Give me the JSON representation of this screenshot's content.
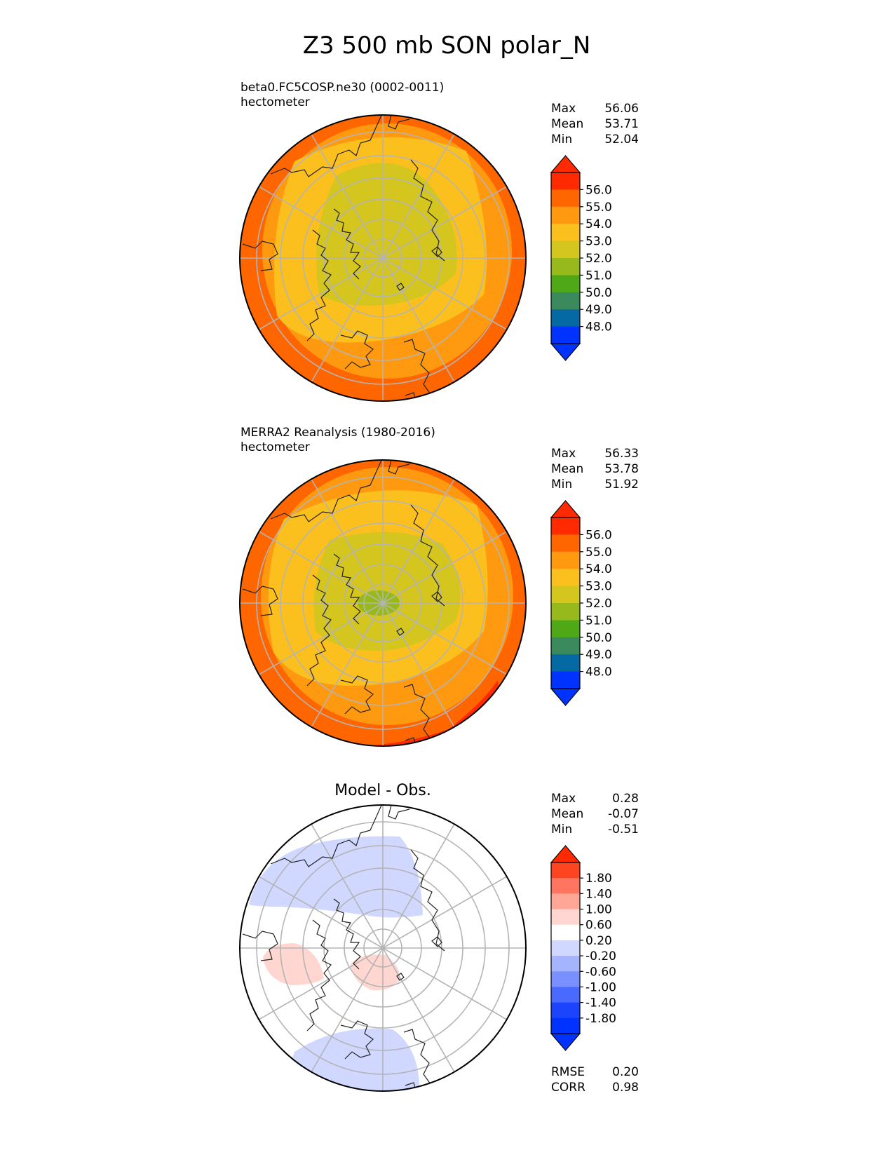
{
  "figure": {
    "title": "Z3 500 mb SON polar_N"
  },
  "panels": [
    {
      "kind": "field",
      "subtitle": "beta0.FC5COSP.ne30 (0002-0011)",
      "units": "hectometer",
      "stats": [
        {
          "label": "Max",
          "value": "56.06"
        },
        {
          "label": "Mean",
          "value": "53.71"
        },
        {
          "label": "Min",
          "value": "52.04"
        }
      ]
    },
    {
      "kind": "field",
      "subtitle": "MERRA2 Reanalysis (1980-2016)",
      "units": "hectometer",
      "stats": [
        {
          "label": "Max",
          "value": "56.33"
        },
        {
          "label": "Mean",
          "value": "53.78"
        },
        {
          "label": "Min",
          "value": "51.92"
        }
      ]
    },
    {
      "kind": "diff",
      "title": "Model - Obs.",
      "stats": [
        {
          "label": "Max",
          "value": "0.28"
        },
        {
          "label": "Mean",
          "value": "-0.07"
        },
        {
          "label": "Min",
          "value": "-0.51"
        }
      ],
      "extra_stats": [
        {
          "label": "RMSE",
          "value": "0.20"
        },
        {
          "label": "CORR",
          "value": "0.98"
        }
      ]
    }
  ],
  "colorbars": {
    "field": {
      "ticks": [
        "56.0",
        "55.0",
        "54.0",
        "53.0",
        "52.0",
        "51.0",
        "50.0",
        "49.0",
        "48.0"
      ],
      "colors_top_to_bottom": [
        "#ff2a00",
        "#ff6600",
        "#ff9910",
        "#fcc01e",
        "#d4c61e",
        "#98b91c",
        "#4fa815",
        "#3a8a5e",
        "#0569a4",
        "#0033ff"
      ],
      "extend_top": "#ff2a00",
      "extend_bottom": "#0033ff"
    },
    "diff": {
      "ticks": [
        "1.80",
        "1.40",
        "1.00",
        "0.60",
        "0.20",
        "-0.20",
        "-0.60",
        "-1.00",
        "-1.40",
        "-1.80"
      ],
      "colors_top_to_bottom": [
        "#ff4422",
        "#ff7560",
        "#ffa696",
        "#ffd6d0",
        "#ffffff",
        "#d0d8ff",
        "#a4b4ff",
        "#7a90ff",
        "#4a6aff",
        "#1c44ff",
        "#0033ff"
      ],
      "extend_top": "#ff2a00",
      "extend_bottom": "#0033ff"
    }
  },
  "chart_data": [
    {
      "type": "heatmap",
      "title": "beta0.FC5COSP.ne30 (0002-0011)",
      "units": "hectometer",
      "projection": "north-polar stereographic",
      "levels": [
        48.0,
        49.0,
        50.0,
        51.0,
        52.0,
        53.0,
        54.0,
        55.0,
        56.0
      ],
      "max": 56.06,
      "mean": 53.71,
      "min": 52.04
    },
    {
      "type": "heatmap",
      "title": "MERRA2 Reanalysis (1980-2016)",
      "units": "hectometer",
      "projection": "north-polar stereographic",
      "levels": [
        48.0,
        49.0,
        50.0,
        51.0,
        52.0,
        53.0,
        54.0,
        55.0,
        56.0
      ],
      "max": 56.33,
      "mean": 53.78,
      "min": 51.92
    },
    {
      "type": "heatmap",
      "title": "Model - Obs.",
      "projection": "north-polar stereographic",
      "levels": [
        -1.8,
        -1.4,
        -1.0,
        -0.6,
        -0.2,
        0.2,
        0.6,
        1.0,
        1.4,
        1.8
      ],
      "max": 0.28,
      "mean": -0.07,
      "min": -0.51,
      "rmse": 0.2,
      "corr": 0.98
    }
  ]
}
